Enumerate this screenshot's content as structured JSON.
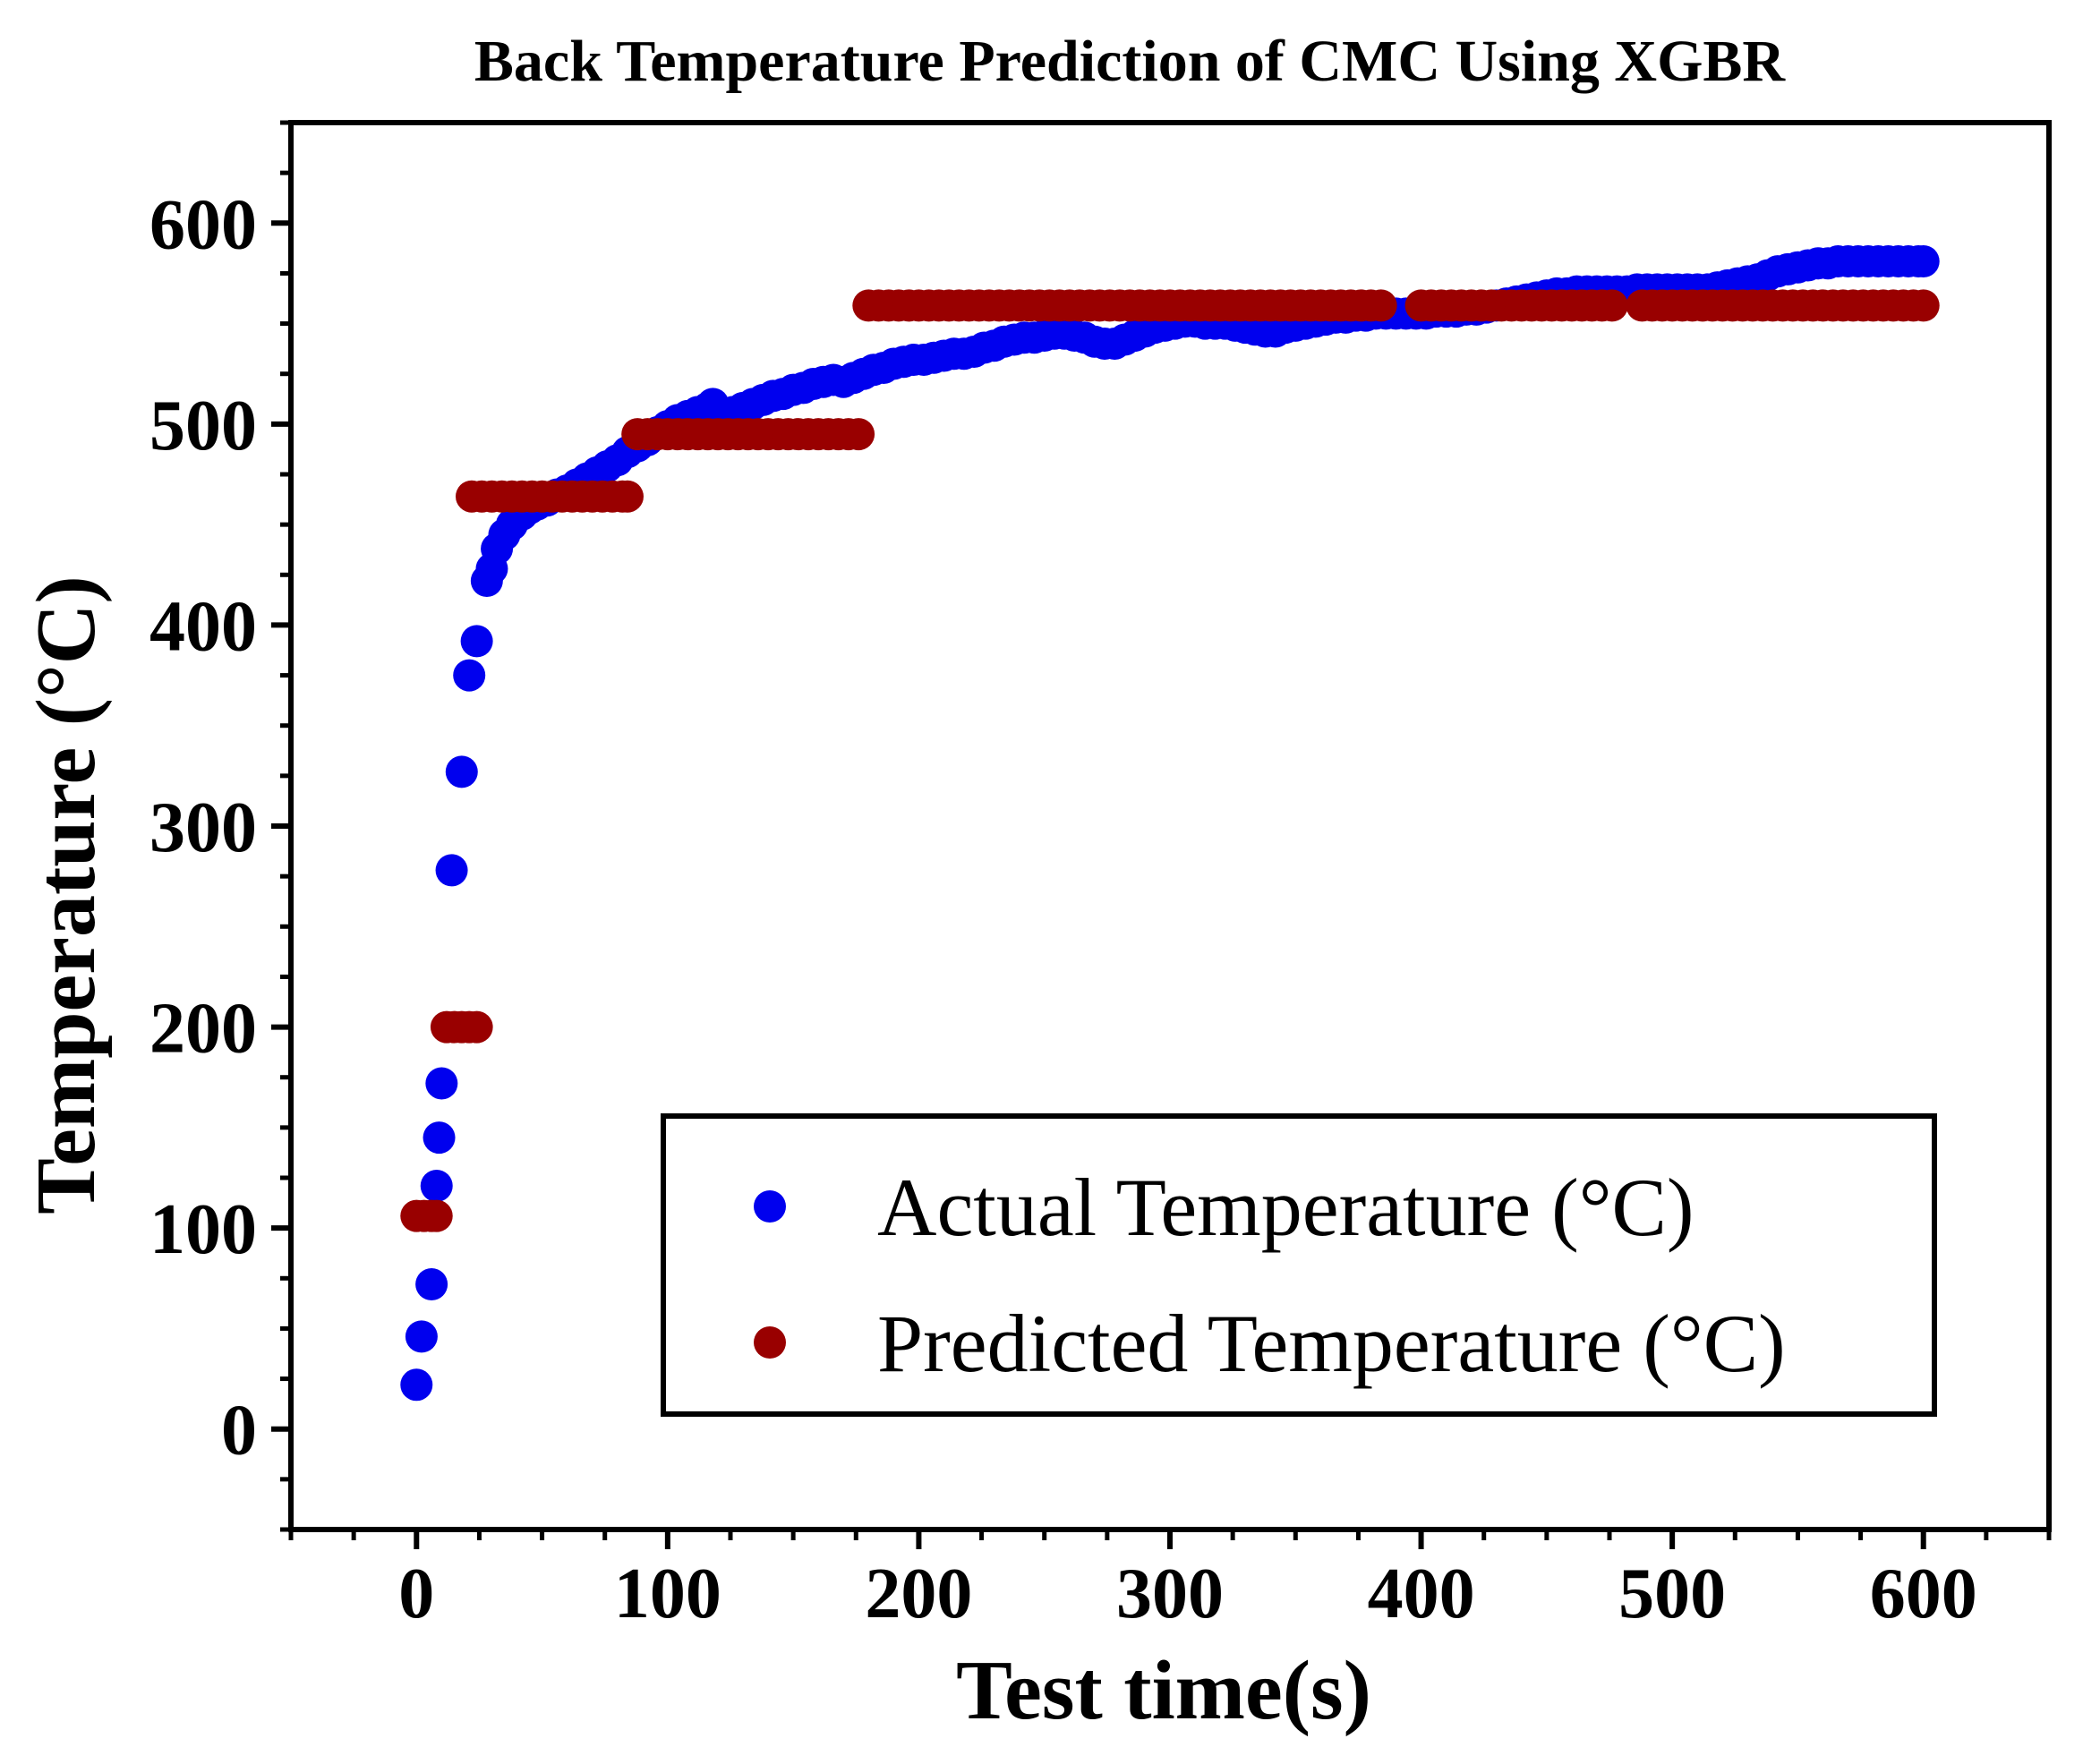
{
  "chart_data": {
    "type": "scatter",
    "title": "Back Temperature Prediction of CMC Using XGBR",
    "xlabel": "Test time(s)",
    "ylabel": "Temperature (°C)",
    "xlim": [
      -50,
      650
    ],
    "ylim": [
      -50,
      650
    ],
    "xticks": [
      0,
      100,
      200,
      300,
      400,
      500,
      600
    ],
    "yticks": [
      0,
      100,
      200,
      300,
      400,
      500,
      600
    ],
    "xtick_labels": [
      "0",
      "100",
      "200",
      "300",
      "400",
      "500",
      "600"
    ],
    "ytick_labels": [
      "0",
      "100",
      "200",
      "300",
      "400",
      "500",
      "600"
    ],
    "grid": false,
    "legend_position": "bottom-right",
    "series": [
      {
        "name": "Actual Temperature (°C)",
        "color": "#0000ee",
        "points": [
          [
            0,
            22
          ],
          [
            2,
            46
          ],
          [
            6,
            72
          ],
          [
            8,
            121
          ],
          [
            9,
            145
          ],
          [
            10,
            172
          ],
          [
            14,
            278
          ],
          [
            18,
            327
          ],
          [
            21,
            375
          ],
          [
            24,
            392
          ],
          [
            28,
            422
          ],
          [
            30,
            428
          ],
          [
            32,
            438
          ],
          [
            35,
            445
          ],
          [
            38,
            450
          ],
          [
            42,
            455
          ],
          [
            45,
            458
          ],
          [
            48,
            460
          ],
          [
            52,
            462
          ],
          [
            56,
            465
          ],
          [
            60,
            467
          ],
          [
            64,
            470
          ],
          [
            68,
            473
          ],
          [
            72,
            476
          ],
          [
            76,
            479
          ],
          [
            80,
            482
          ],
          [
            84,
            486
          ],
          [
            88,
            489
          ],
          [
            92,
            492
          ],
          [
            96,
            496
          ],
          [
            100,
            499
          ],
          [
            104,
            502
          ],
          [
            108,
            504
          ],
          [
            112,
            506
          ],
          [
            116,
            508
          ],
          [
            118,
            510
          ],
          [
            122,
            504
          ],
          [
            126,
            506
          ],
          [
            130,
            508
          ],
          [
            134,
            510
          ],
          [
            138,
            512
          ],
          [
            142,
            514
          ],
          [
            146,
            515
          ],
          [
            150,
            517
          ],
          [
            154,
            518
          ],
          [
            158,
            520
          ],
          [
            162,
            521
          ],
          [
            166,
            522
          ],
          [
            170,
            521
          ],
          [
            174,
            523
          ],
          [
            178,
            525
          ],
          [
            182,
            527
          ],
          [
            186,
            528
          ],
          [
            190,
            530
          ],
          [
            194,
            531
          ],
          [
            198,
            532
          ],
          [
            202,
            532
          ],
          [
            206,
            533
          ],
          [
            210,
            534
          ],
          [
            214,
            535
          ],
          [
            218,
            535
          ],
          [
            222,
            536
          ],
          [
            226,
            538
          ],
          [
            230,
            539
          ],
          [
            234,
            541
          ],
          [
            238,
            542
          ],
          [
            242,
            543
          ],
          [
            246,
            543
          ],
          [
            250,
            544
          ],
          [
            254,
            545
          ],
          [
            258,
            545
          ],
          [
            262,
            544
          ],
          [
            266,
            543
          ],
          [
            270,
            541
          ],
          [
            274,
            540
          ],
          [
            278,
            540
          ],
          [
            282,
            542
          ],
          [
            286,
            544
          ],
          [
            290,
            546
          ],
          [
            294,
            548
          ],
          [
            298,
            549
          ],
          [
            302,
            550
          ],
          [
            306,
            551
          ],
          [
            310,
            551
          ],
          [
            314,
            550
          ],
          [
            318,
            550
          ],
          [
            322,
            550
          ],
          [
            326,
            549
          ],
          [
            330,
            548
          ],
          [
            334,
            547
          ],
          [
            338,
            546
          ],
          [
            342,
            546
          ],
          [
            346,
            548
          ],
          [
            350,
            549
          ],
          [
            354,
            550
          ],
          [
            358,
            551
          ],
          [
            362,
            552
          ],
          [
            366,
            553
          ],
          [
            370,
            553
          ],
          [
            374,
            554
          ],
          [
            378,
            554
          ],
          [
            382,
            555
          ],
          [
            386,
            555
          ],
          [
            390,
            555
          ],
          [
            394,
            555
          ],
          [
            398,
            555
          ],
          [
            402,
            555
          ],
          [
            406,
            556
          ],
          [
            410,
            556
          ],
          [
            414,
            556
          ],
          [
            418,
            557
          ],
          [
            422,
            557
          ],
          [
            426,
            558
          ],
          [
            430,
            559
          ],
          [
            434,
            560
          ],
          [
            438,
            561
          ],
          [
            442,
            562
          ],
          [
            446,
            563
          ],
          [
            450,
            564
          ],
          [
            454,
            565
          ],
          [
            458,
            565
          ],
          [
            462,
            566
          ],
          [
            466,
            566
          ],
          [
            470,
            566
          ],
          [
            474,
            566
          ],
          [
            478,
            566
          ],
          [
            482,
            566
          ],
          [
            486,
            567
          ],
          [
            490,
            567
          ],
          [
            494,
            567
          ],
          [
            498,
            567
          ],
          [
            502,
            567
          ],
          [
            506,
            567
          ],
          [
            510,
            567
          ],
          [
            514,
            567
          ],
          [
            518,
            568
          ],
          [
            522,
            569
          ],
          [
            526,
            570
          ],
          [
            530,
            571
          ],
          [
            534,
            572
          ],
          [
            538,
            574
          ],
          [
            542,
            576
          ],
          [
            546,
            577
          ],
          [
            550,
            578
          ],
          [
            554,
            579
          ],
          [
            558,
            580
          ],
          [
            562,
            580
          ],
          [
            566,
            581
          ],
          [
            570,
            581
          ],
          [
            574,
            581
          ],
          [
            578,
            581
          ],
          [
            582,
            581
          ],
          [
            586,
            581
          ],
          [
            590,
            581
          ],
          [
            594,
            581
          ],
          [
            598,
            581
          ],
          [
            600,
            581
          ]
        ]
      },
      {
        "name": "Predicted Temperature (°C)",
        "color": "#990000",
        "points": [
          [
            0,
            106
          ],
          [
            3,
            106
          ],
          [
            6,
            106
          ],
          [
            8,
            106
          ],
          [
            12,
            200
          ],
          [
            15,
            200
          ],
          [
            18,
            200
          ],
          [
            21,
            200
          ],
          [
            24,
            200
          ],
          [
            22,
            464
          ],
          [
            26,
            464
          ],
          [
            30,
            464
          ],
          [
            34,
            464
          ],
          [
            38,
            464
          ],
          [
            42,
            464
          ],
          [
            46,
            464
          ],
          [
            50,
            464
          ],
          [
            54,
            464
          ],
          [
            58,
            464
          ],
          [
            62,
            464
          ],
          [
            66,
            464
          ],
          [
            70,
            464
          ],
          [
            74,
            464
          ],
          [
            78,
            464
          ],
          [
            82,
            464
          ],
          [
            84,
            464
          ],
          [
            88,
            495
          ],
          [
            92,
            495
          ],
          [
            96,
            495
          ],
          [
            100,
            495
          ],
          [
            104,
            495
          ],
          [
            108,
            495
          ],
          [
            112,
            495
          ],
          [
            116,
            495
          ],
          [
            120,
            495
          ],
          [
            124,
            495
          ],
          [
            128,
            495
          ],
          [
            132,
            495
          ],
          [
            136,
            495
          ],
          [
            140,
            495
          ],
          [
            144,
            495
          ],
          [
            148,
            495
          ],
          [
            152,
            495
          ],
          [
            156,
            495
          ],
          [
            160,
            495
          ],
          [
            164,
            495
          ],
          [
            168,
            495
          ],
          [
            172,
            495
          ],
          [
            176,
            495
          ],
          [
            180,
            559
          ],
          [
            184,
            559
          ],
          [
            188,
            559
          ],
          [
            192,
            559
          ],
          [
            196,
            559
          ],
          [
            200,
            559
          ],
          [
            204,
            559
          ],
          [
            208,
            559
          ],
          [
            212,
            559
          ],
          [
            216,
            559
          ],
          [
            220,
            559
          ],
          [
            224,
            559
          ],
          [
            228,
            559
          ],
          [
            232,
            559
          ],
          [
            236,
            559
          ],
          [
            240,
            559
          ],
          [
            244,
            559
          ],
          [
            248,
            559
          ],
          [
            252,
            559
          ],
          [
            256,
            559
          ],
          [
            260,
            559
          ],
          [
            264,
            559
          ],
          [
            268,
            559
          ],
          [
            272,
            559
          ],
          [
            276,
            559
          ],
          [
            280,
            559
          ],
          [
            284,
            559
          ],
          [
            288,
            559
          ],
          [
            292,
            559
          ],
          [
            296,
            559
          ],
          [
            300,
            559
          ],
          [
            304,
            559
          ],
          [
            308,
            559
          ],
          [
            312,
            559
          ],
          [
            316,
            559
          ],
          [
            320,
            559
          ],
          [
            324,
            559
          ],
          [
            328,
            559
          ],
          [
            332,
            559
          ],
          [
            336,
            559
          ],
          [
            340,
            559
          ],
          [
            344,
            559
          ],
          [
            348,
            559
          ],
          [
            352,
            559
          ],
          [
            356,
            559
          ],
          [
            360,
            559
          ],
          [
            364,
            559
          ],
          [
            368,
            559
          ],
          [
            372,
            559
          ],
          [
            376,
            559
          ],
          [
            380,
            559
          ],
          [
            384,
            559
          ],
          [
            400,
            559
          ],
          [
            404,
            559
          ],
          [
            408,
            559
          ],
          [
            412,
            559
          ],
          [
            416,
            559
          ],
          [
            420,
            559
          ],
          [
            424,
            559
          ],
          [
            428,
            559
          ],
          [
            432,
            559
          ],
          [
            436,
            559
          ],
          [
            440,
            559
          ],
          [
            444,
            559
          ],
          [
            448,
            559
          ],
          [
            452,
            559
          ],
          [
            456,
            559
          ],
          [
            460,
            559
          ],
          [
            464,
            559
          ],
          [
            468,
            559
          ],
          [
            472,
            559
          ],
          [
            476,
            559
          ],
          [
            488,
            559
          ],
          [
            492,
            559
          ],
          [
            496,
            559
          ],
          [
            500,
            559
          ],
          [
            504,
            559
          ],
          [
            508,
            559
          ],
          [
            512,
            559
          ],
          [
            516,
            559
          ],
          [
            520,
            559
          ],
          [
            524,
            559
          ],
          [
            528,
            559
          ],
          [
            532,
            559
          ],
          [
            536,
            559
          ],
          [
            540,
            559
          ],
          [
            544,
            559
          ],
          [
            548,
            559
          ],
          [
            552,
            559
          ],
          [
            556,
            559
          ],
          [
            560,
            559
          ],
          [
            564,
            559
          ],
          [
            568,
            559
          ],
          [
            572,
            559
          ],
          [
            576,
            559
          ],
          [
            580,
            559
          ],
          [
            584,
            559
          ],
          [
            588,
            559
          ],
          [
            592,
            559
          ],
          [
            596,
            559
          ],
          [
            600,
            559
          ]
        ]
      }
    ]
  }
}
